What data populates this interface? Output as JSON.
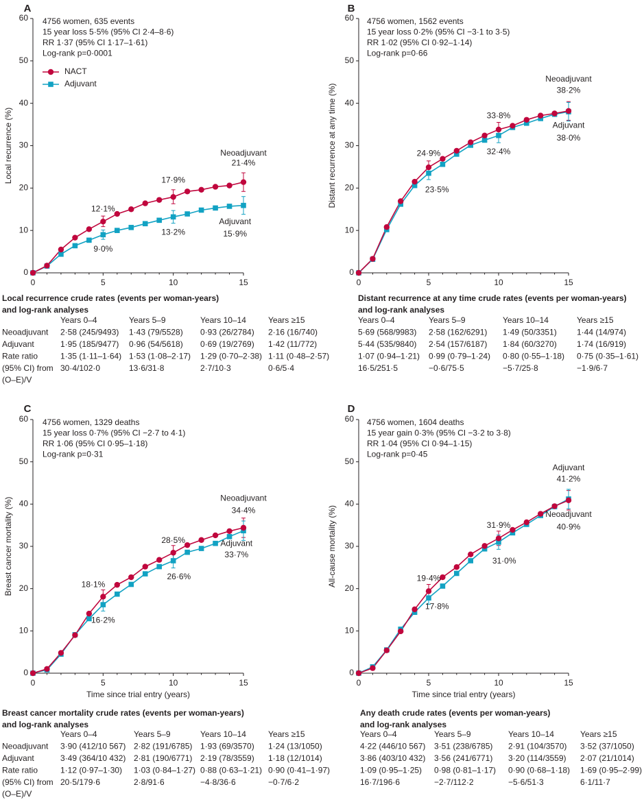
{
  "colors": {
    "nact": "#c0063d",
    "adjuvant": "#12a2c3",
    "axis": "#231f20"
  },
  "icons": {
    "nact_marker": "circle",
    "adjuvant_marker": "square"
  },
  "chart_data": [
    {
      "id": "A",
      "type": "line",
      "panel_label": "A",
      "ylabel": "Local recurrence (%)",
      "xlabel": "",
      "ylim": [
        0,
        60
      ],
      "y_ticks": [
        0,
        10,
        20,
        30,
        40,
        50,
        60
      ],
      "xlim": [
        0,
        15
      ],
      "x_ticks": [
        0,
        5,
        10,
        15
      ],
      "info": [
        "4756 women, 635 events",
        "15 year loss 5·5% (95% CI 2·4–8·6)",
        "RR 1·37 (95% CI 1·17–1·61)",
        "Log-rank p=0·0001"
      ],
      "legend": {
        "show": true,
        "placement": "upper-left",
        "nact": "NACT",
        "adjuvant": "Adjuvant"
      },
      "series": [
        {
          "name": "Neoadjuvant",
          "x": [
            0,
            1,
            2,
            3,
            4,
            5,
            6,
            7,
            8,
            9,
            10,
            11,
            12,
            13,
            14,
            15
          ],
          "values": [
            0,
            1.7,
            5.5,
            8.3,
            10.3,
            12.1,
            13.9,
            15.0,
            16.4,
            17.2,
            17.9,
            19.2,
            19.6,
            20.3,
            20.6,
            21.4
          ]
        },
        {
          "name": "Adjuvant",
          "x": [
            0,
            1,
            2,
            3,
            4,
            5,
            6,
            7,
            8,
            9,
            10,
            11,
            12,
            13,
            14,
            15
          ],
          "values": [
            0,
            1.6,
            4.4,
            6.4,
            7.7,
            9.0,
            10.0,
            10.7,
            11.6,
            12.4,
            13.2,
            13.9,
            14.8,
            15.3,
            15.7,
            15.9
          ]
        }
      ],
      "error_bars": [
        {
          "series": "Neoadjuvant",
          "x": 5,
          "low": 10.9,
          "high": 13.4
        },
        {
          "series": "Neoadjuvant",
          "x": 10,
          "low": 16.3,
          "high": 19.6
        },
        {
          "series": "Neoadjuvant",
          "x": 15,
          "low": 19.2,
          "high": 23.6
        },
        {
          "series": "Adjuvant",
          "x": 5,
          "low": 7.9,
          "high": 10.1
        },
        {
          "series": "Adjuvant",
          "x": 10,
          "low": 11.7,
          "high": 14.7
        },
        {
          "series": "Adjuvant",
          "x": 15,
          "low": 13.8,
          "high": 18.0
        }
      ],
      "annotations": [
        {
          "text": "12·1%",
          "x": 5,
          "y": 15.0
        },
        {
          "text": "9·0%",
          "x": 5,
          "y": 5.5
        },
        {
          "text": "17·9%",
          "x": 10,
          "y": 21.8
        },
        {
          "text": "13·2%",
          "x": 10,
          "y": 9.5
        },
        {
          "text": "Neoadjuvant",
          "x": 15,
          "y": 28.2
        },
        {
          "text": "21·4%",
          "x": 15,
          "y": 25.8
        },
        {
          "text": "Adjuvant",
          "x": 14.4,
          "y": 12.0
        },
        {
          "text": "15·9%",
          "x": 14.4,
          "y": 9.1
        }
      ]
    },
    {
      "id": "B",
      "type": "line",
      "panel_label": "B",
      "ylabel": "Distant recurrence at any time (%)",
      "xlabel": "",
      "ylim": [
        0,
        60
      ],
      "y_ticks": [
        0,
        10,
        20,
        30,
        40,
        50,
        60
      ],
      "xlim": [
        0,
        15
      ],
      "x_ticks": [
        0,
        5,
        10,
        15
      ],
      "info": [
        "4756 women, 1562 events",
        "15 year loss 0·2% (95% CI −3·1 to 3·5)",
        "RR 1·02 (95% CI 0·92–1·14)",
        "Log-rank p=0·66"
      ],
      "legend": {
        "show": false
      },
      "series": [
        {
          "name": "Neoadjuvant",
          "x": [
            0,
            1,
            2,
            3,
            4,
            5,
            6,
            7,
            8,
            9,
            10,
            11,
            12,
            13,
            14,
            15
          ],
          "values": [
            0,
            3.3,
            10.8,
            16.9,
            21.5,
            24.9,
            26.9,
            28.8,
            30.8,
            32.4,
            33.8,
            34.7,
            36.1,
            37.1,
            37.6,
            38.2
          ]
        },
        {
          "name": "Adjuvant",
          "x": [
            0,
            1,
            2,
            3,
            4,
            5,
            6,
            7,
            8,
            9,
            10,
            11,
            12,
            13,
            14,
            15
          ],
          "values": [
            0,
            3.2,
            10.2,
            16.2,
            20.6,
            23.5,
            25.6,
            28.0,
            30.1,
            31.3,
            32.4,
            34.3,
            35.3,
            36.4,
            37.4,
            38.0
          ]
        }
      ],
      "error_bars": [
        {
          "series": "Neoadjuvant",
          "x": 5,
          "low": 23.4,
          "high": 26.4
        },
        {
          "series": "Neoadjuvant",
          "x": 10,
          "low": 32.1,
          "high": 35.5
        },
        {
          "series": "Neoadjuvant",
          "x": 15,
          "low": 36.0,
          "high": 40.4
        },
        {
          "series": "Adjuvant",
          "x": 5,
          "low": 22.0,
          "high": 25.0
        },
        {
          "series": "Adjuvant",
          "x": 10,
          "low": 30.7,
          "high": 34.1
        },
        {
          "series": "Adjuvant",
          "x": 15,
          "low": 35.8,
          "high": 40.2
        }
      ],
      "annotations": [
        {
          "text": "24·9%",
          "x": 5,
          "y": 28.1
        },
        {
          "text": "23·5%",
          "x": 5.6,
          "y": 19.5
        },
        {
          "text": "33·8%",
          "x": 10,
          "y": 37.0
        },
        {
          "text": "32·4%",
          "x": 10,
          "y": 28.5
        },
        {
          "text": "Neoadjuvant",
          "x": 15,
          "y": 45.6
        },
        {
          "text": "38·2%",
          "x": 15,
          "y": 43.0
        },
        {
          "text": "Adjuvant",
          "x": 15,
          "y": 34.7
        },
        {
          "text": "38·0%",
          "x": 15,
          "y": 31.7
        }
      ]
    },
    {
      "id": "C",
      "type": "line",
      "panel_label": "C",
      "ylabel": "Breast cancer mortality (%)",
      "xlabel": "Time since trial entry (years)",
      "ylim": [
        0,
        60
      ],
      "y_ticks": [
        0,
        10,
        20,
        30,
        40,
        50,
        60
      ],
      "xlim": [
        0,
        15
      ],
      "x_ticks": [
        0,
        5,
        10,
        15
      ],
      "info": [
        "4756 women, 1329 deaths",
        "15 year loss 0·7% (95% CI −2·7 to 4·1)",
        "RR 1·06 (95% CI 0·95–1·18)",
        "Log-rank p=0·31"
      ],
      "legend": {
        "show": false
      },
      "series": [
        {
          "name": "Neoadjuvant",
          "x": [
            0,
            1,
            2,
            3,
            4,
            5,
            6,
            7,
            8,
            9,
            10,
            11,
            12,
            13,
            14,
            15
          ],
          "values": [
            0,
            1.0,
            4.8,
            9.0,
            14.1,
            18.1,
            20.9,
            22.7,
            25.2,
            26.8,
            28.5,
            30.3,
            31.5,
            32.6,
            33.6,
            34.4
          ]
        },
        {
          "name": "Adjuvant",
          "x": [
            0,
            1,
            2,
            3,
            4,
            5,
            6,
            7,
            8,
            9,
            10,
            11,
            12,
            13,
            14,
            15
          ],
          "values": [
            0,
            0.8,
            4.5,
            9.1,
            12.9,
            16.2,
            18.7,
            21.0,
            23.5,
            25.2,
            26.6,
            28.6,
            29.5,
            30.7,
            32.3,
            33.7
          ]
        }
      ],
      "error_bars": [
        {
          "series": "Neoadjuvant",
          "x": 5,
          "low": 16.5,
          "high": 19.7
        },
        {
          "series": "Neoadjuvant",
          "x": 10,
          "low": 26.8,
          "high": 30.2
        },
        {
          "series": "Neoadjuvant",
          "x": 15,
          "low": 32.1,
          "high": 36.7
        },
        {
          "series": "Adjuvant",
          "x": 5,
          "low": 14.7,
          "high": 17.7
        },
        {
          "series": "Adjuvant",
          "x": 10,
          "low": 24.9,
          "high": 28.3
        },
        {
          "series": "Adjuvant",
          "x": 15,
          "low": 31.4,
          "high": 36.0
        }
      ],
      "annotations": [
        {
          "text": "18·1%",
          "x": 4.3,
          "y": 20.9
        },
        {
          "text": "16·2%",
          "x": 5,
          "y": 12.4
        },
        {
          "text": "28·5%",
          "x": 10,
          "y": 31.3
        },
        {
          "text": "26·6%",
          "x": 10.4,
          "y": 22.7
        },
        {
          "text": "Neoadjuvant",
          "x": 15,
          "y": 41.3
        },
        {
          "text": "34·4%",
          "x": 15,
          "y": 38.4
        },
        {
          "text": "Adjuvant",
          "x": 14.5,
          "y": 30.6
        },
        {
          "text": "33·7%",
          "x": 14.5,
          "y": 27.9
        }
      ]
    },
    {
      "id": "D",
      "type": "line",
      "panel_label": "D",
      "ylabel": "All-cause mortality (%)",
      "xlabel": "Time since trial entry (years)",
      "ylim": [
        0,
        60
      ],
      "y_ticks": [
        0,
        10,
        20,
        30,
        40,
        50,
        60
      ],
      "xlim": [
        0,
        15
      ],
      "x_ticks": [
        0,
        5,
        10,
        15
      ],
      "info": [
        "4756 women, 1604 deaths",
        "15 year gain 0·3% (95% CI −3·2 to 3·8)",
        "RR 1·04 (95% CI 0·94–1·15)",
        "Log-rank p=0·45"
      ],
      "legend": {
        "show": false
      },
      "series": [
        {
          "name": "Neoadjuvant",
          "x": [
            0,
            1,
            2,
            3,
            4,
            5,
            6,
            7,
            8,
            9,
            10,
            11,
            12,
            13,
            14,
            15
          ],
          "values": [
            0,
            1.2,
            5.4,
            9.9,
            15.1,
            19.4,
            22.7,
            25.1,
            28.1,
            30.1,
            31.9,
            33.9,
            35.7,
            37.7,
            39.5,
            40.9
          ]
        },
        {
          "name": "Adjuvant",
          "x": [
            0,
            1,
            2,
            3,
            4,
            5,
            6,
            7,
            8,
            9,
            10,
            11,
            12,
            13,
            14,
            15
          ],
          "values": [
            0,
            1.5,
            5.5,
            10.4,
            14.4,
            17.8,
            20.6,
            23.6,
            26.6,
            29.4,
            31.0,
            33.2,
            35.2,
            37.3,
            39.4,
            41.2
          ]
        }
      ],
      "error_bars": [
        {
          "series": "Neoadjuvant",
          "x": 5,
          "low": 17.9,
          "high": 21.0
        },
        {
          "series": "Neoadjuvant",
          "x": 10,
          "low": 30.2,
          "high": 33.6
        },
        {
          "series": "Neoadjuvant",
          "x": 15,
          "low": 38.6,
          "high": 43.2
        },
        {
          "series": "Adjuvant",
          "x": 5,
          "low": 16.3,
          "high": 19.3
        },
        {
          "series": "Adjuvant",
          "x": 10,
          "low": 29.3,
          "high": 32.7
        },
        {
          "series": "Adjuvant",
          "x": 15,
          "low": 38.9,
          "high": 43.5
        }
      ],
      "annotations": [
        {
          "text": "19·4%",
          "x": 5,
          "y": 22.3
        },
        {
          "text": "17·8%",
          "x": 5.6,
          "y": 15.7
        },
        {
          "text": "31·9%",
          "x": 10,
          "y": 34.9
        },
        {
          "text": "31·0%",
          "x": 10.4,
          "y": 26.5
        },
        {
          "text": "Adjuvant",
          "x": 15,
          "y": 48.5
        },
        {
          "text": "41·2%",
          "x": 15,
          "y": 45.8
        },
        {
          "text": "Neoadjuvant",
          "x": 15,
          "y": 37.5
        },
        {
          "text": "40·9%",
          "x": 15,
          "y": 34.5
        }
      ]
    },
    {
      "id": "A-table",
      "type": "table",
      "title": [
        "Local recurrence crude rates (events per woman-years)",
        "and log-rank analyses"
      ],
      "columns": [
        "",
        "Years 0–4",
        "Years 5–9",
        "Years 10–14",
        "Years ≥15"
      ],
      "rows": [
        [
          "Neoadjuvant",
          "2·58 (245/9493)",
          "1·43 (79/5528)",
          "0·93 (26/2784)",
          "2·16 (16/740)"
        ],
        [
          "Adjuvant",
          "1·95 (185/9477)",
          "0·96 (54/5618)",
          "0·69 (19/2769)",
          "1·42 (11/772)"
        ],
        [
          "Rate ratio",
          "1·35 (1·11–1·64)",
          "1·53 (1·08–2·17)",
          "1·29 (0·70–2·38)",
          "1·11 (0·48–2·57)"
        ],
        [
          "(95% CI) from",
          "30·4/102·0",
          "13·6/31·8",
          "2·7/10·3",
          "0·6/5·4"
        ],
        [
          "(O–E)/V",
          "",
          "",
          "",
          ""
        ]
      ]
    },
    {
      "id": "B-table",
      "type": "table",
      "title": [
        "Distant recurrence at any time crude rates (events per woman-years)",
        "and log-rank analyses"
      ],
      "columns": [
        "Years 0–4",
        "Years 5–9",
        "Years 10–14",
        "Years ≥15"
      ],
      "rows": [
        [
          "5·69 (568/9983)",
          "2·58 (162/6291)",
          "1·49 (50/3351)",
          "1·44 (14/974)"
        ],
        [
          "5·44 (535/9840)",
          "2·54 (157/6187)",
          "1·84 (60/3270)",
          "1·74 (16/919)"
        ],
        [
          "1·07 (0·94–1·21)",
          "0·99 (0·79–1·24)",
          "0·80 (0·55–1·18)",
          "0·75 (0·35–1·61)"
        ],
        [
          "16·5/251·5",
          "−0·6/75·5",
          "−5·7/25·8",
          "−1·9/6·7"
        ]
      ]
    },
    {
      "id": "C-table",
      "type": "table",
      "title": [
        "Breast cancer mortality crude rates (events per woman-years)",
        "and log-rank analyses"
      ],
      "columns": [
        "",
        "Years 0–4",
        "Years 5–9",
        "Years 10–14",
        "Years ≥15"
      ],
      "rows": [
        [
          "Neoadjuvant",
          "3·90 (412/10 567)",
          "2·82 (191/6785)",
          "1·93 (69/3570)",
          "1·24 (13/1050)"
        ],
        [
          "Adjuvant",
          "3·49 (364/10 432)",
          "2·81 (190/6771)",
          "2·19 (78/3559)",
          "1·18 (12/1014)"
        ],
        [
          "Rate ratio",
          "1·12 (0·97–1·30)",
          "1·03 (0·84–1·27)",
          "0·88 (0·63–1·21)",
          "0·90 (0·41–1·97)"
        ],
        [
          "(95% CI) from",
          "20·5/179·6",
          "2·8/91·6",
          "−4·8/36·6",
          "−0·7/6·2"
        ],
        [
          "(O–E)/V",
          "",
          "",
          "",
          ""
        ]
      ]
    },
    {
      "id": "D-table",
      "type": "table",
      "title": [
        "Any death crude rates (events per woman-years)",
        "and log-rank analyses"
      ],
      "columns": [
        "Years 0–4",
        "Years 5–9",
        "Years 10–14",
        "Years ≥15"
      ],
      "rows": [
        [
          "4·22 (446/10 567)",
          "3·51 (238/6785)",
          "2·91 (104/3570)",
          "3·52 (37/1050)"
        ],
        [
          "3·86 (403/10 432)",
          "3·56 (241/6771)",
          "3·20 (114/3559)",
          "2·07 (21/1014)"
        ],
        [
          "1·09 (0·95–1·25)",
          "0·98 (0·81–1·17)",
          "0·90 (0·68–1·18)",
          "1·69 (0·95–2·99)"
        ],
        [
          "16·7/196·6",
          "−2·7/112·2",
          "−5·6/51·3",
          "6·1/11·7"
        ]
      ]
    }
  ]
}
